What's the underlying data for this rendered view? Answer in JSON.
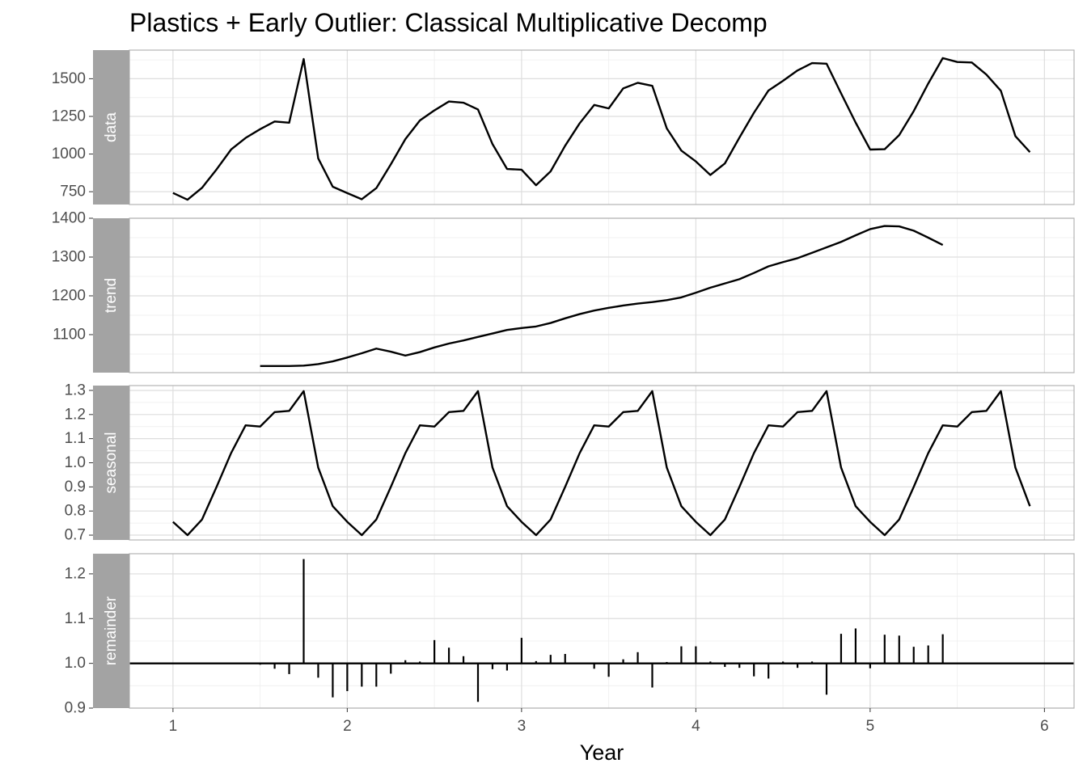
{
  "chart_data": {
    "type": "line",
    "title": "Plastics + Early Outlier: Classical Multiplicative Decomp",
    "xlabel": "Year",
    "xlim": [
      0.75,
      6.17
    ],
    "xticks": [
      1,
      2,
      3,
      4,
      5,
      6
    ],
    "panels": [
      {
        "name": "data",
        "style": "line",
        "ylim": [
          665,
          1690
        ],
        "yticks": [
          750,
          1000,
          1250,
          1500
        ],
        "x": [
          1.0,
          1.0833,
          1.1667,
          1.25,
          1.3333,
          1.4167,
          1.5,
          1.5833,
          1.6667,
          1.75,
          1.8333,
          1.9167,
          2.0,
          2.0833,
          2.1667,
          2.25,
          2.3333,
          2.4167,
          2.5,
          2.5833,
          2.6667,
          2.75,
          2.8333,
          2.9167,
          3.0,
          3.0833,
          3.1667,
          3.25,
          3.3333,
          3.4167,
          3.5,
          3.5833,
          3.6667,
          3.75,
          3.8333,
          3.9167,
          4.0,
          4.0833,
          4.1667,
          4.25,
          4.3333,
          4.4167,
          4.5,
          4.5833,
          4.6667,
          4.75,
          4.8333,
          4.9167,
          5.0,
          5.0833,
          5.1667,
          5.25,
          5.3333,
          5.4167,
          5.5,
          5.5833,
          5.6667,
          5.75,
          5.8333,
          5.9167
        ],
        "values": [
          742,
          697,
          776,
          898,
          1030,
          1107,
          1165,
          1216,
          1208,
          1631,
          971,
          783,
          741,
          700,
          774,
          932,
          1099,
          1223,
          1290,
          1349,
          1341,
          1296,
          1066,
          901,
          896,
          793,
          885,
          1055,
          1204,
          1326,
          1303,
          1436,
          1473,
          1453,
          1170,
          1023,
          951,
          861,
          938,
          1109,
          1274,
          1422,
          1486,
          1555,
          1604,
          1600,
          1403,
          1209,
          1030,
          1032,
          1126,
          1285,
          1468,
          1637,
          1611,
          1608,
          1528,
          1420,
          1119,
          1013
        ]
      },
      {
        "name": "trend",
        "style": "line",
        "ylim": [
          1002,
          1400
        ],
        "yticks": [
          1100,
          1200,
          1300,
          1400
        ],
        "x": [
          1.5,
          1.5833,
          1.6667,
          1.75,
          1.8333,
          1.9167,
          2.0,
          2.0833,
          2.1667,
          2.25,
          2.3333,
          2.4167,
          2.5,
          2.5833,
          2.6667,
          2.75,
          2.8333,
          2.9167,
          3.0,
          3.0833,
          3.1667,
          3.25,
          3.3333,
          3.4167,
          3.5,
          3.5833,
          3.6667,
          3.75,
          3.8333,
          3.9167,
          4.0,
          4.0833,
          4.1667,
          4.25,
          4.3333,
          4.4167,
          4.5,
          4.5833,
          4.6667,
          4.75,
          4.8333,
          4.9167,
          5.0,
          5.0833,
          5.1667,
          5.25,
          5.3333,
          5.4167
        ],
        "values": [
          1019,
          1019,
          1019,
          1020,
          1024,
          1031,
          1041,
          1052,
          1064,
          1056,
          1046,
          1055,
          1067,
          1077,
          1085,
          1094,
          1103,
          1112,
          1117,
          1121,
          1130,
          1142,
          1153,
          1162,
          1169,
          1175,
          1180,
          1184,
          1189,
          1196,
          1208,
          1221,
          1232,
          1243,
          1259,
          1276,
          1287,
          1297,
          1311,
          1325,
          1339,
          1356,
          1372,
          1380,
          1379,
          1368,
          1350,
          1331
        ]
      },
      {
        "name": "seasonal",
        "style": "line",
        "ylim": [
          0.68,
          1.32
        ],
        "yticks": [
          0.7,
          0.8,
          0.9,
          1.0,
          1.1,
          1.2,
          1.3
        ],
        "ytick_labels": [
          "0.7",
          "0.8",
          "0.9",
          "1.0",
          "1.1",
          "1.2",
          "1.3"
        ],
        "x": [
          1.0,
          1.0833,
          1.1667,
          1.25,
          1.3333,
          1.4167,
          1.5,
          1.5833,
          1.6667,
          1.75,
          1.8333,
          1.9167,
          2.0,
          2.0833,
          2.1667,
          2.25,
          2.3333,
          2.4167,
          2.5,
          2.5833,
          2.6667,
          2.75,
          2.8333,
          2.9167,
          3.0,
          3.0833,
          3.1667,
          3.25,
          3.3333,
          3.4167,
          3.5,
          3.5833,
          3.6667,
          3.75,
          3.8333,
          3.9167,
          4.0,
          4.0833,
          4.1667,
          4.25,
          4.3333,
          4.4167,
          4.5,
          4.5833,
          4.6667,
          4.75,
          4.8333,
          4.9167,
          5.0,
          5.0833,
          5.1667,
          5.25,
          5.3333,
          5.4167,
          5.5,
          5.5833,
          5.6667,
          5.75,
          5.8333,
          5.9167
        ],
        "values": [
          0.755,
          0.7,
          0.765,
          0.9,
          1.04,
          1.155,
          1.15,
          1.21,
          1.215,
          1.297,
          0.98,
          0.82,
          0.755,
          0.7,
          0.765,
          0.9,
          1.04,
          1.155,
          1.15,
          1.21,
          1.215,
          1.297,
          0.98,
          0.82,
          0.755,
          0.7,
          0.765,
          0.9,
          1.04,
          1.155,
          1.15,
          1.21,
          1.215,
          1.297,
          0.98,
          0.82,
          0.755,
          0.7,
          0.765,
          0.9,
          1.04,
          1.155,
          1.15,
          1.21,
          1.215,
          1.297,
          0.98,
          0.82,
          0.755,
          0.7,
          0.765,
          0.9,
          1.04,
          1.155,
          1.15,
          1.21,
          1.215,
          1.297,
          0.98,
          0.82
        ]
      },
      {
        "name": "remainder",
        "style": "spikes",
        "baseline": 1.0,
        "ylim": [
          0.9,
          1.245
        ],
        "yticks": [
          0.9,
          1.0,
          1.1,
          1.2
        ],
        "ytick_labels": [
          "0.9",
          "1.0",
          "1.1",
          "1.2"
        ],
        "x": [
          1.5,
          1.5833,
          1.6667,
          1.75,
          1.8333,
          1.9167,
          2.0,
          2.0833,
          2.1667,
          2.25,
          2.3333,
          2.4167,
          2.5,
          2.5833,
          2.6667,
          2.75,
          2.8333,
          2.9167,
          3.0,
          3.0833,
          3.1667,
          3.25,
          3.3333,
          3.4167,
          3.5,
          3.5833,
          3.6667,
          3.75,
          3.8333,
          3.9167,
          4.0,
          4.0833,
          4.1667,
          4.25,
          4.3333,
          4.4167,
          4.5,
          4.5833,
          4.6667,
          4.75,
          4.8333,
          4.9167,
          5.0,
          5.0833,
          5.1667,
          5.25,
          5.3333,
          5.4167
        ],
        "values": [
          0.997,
          0.988,
          0.976,
          1.233,
          0.968,
          0.924,
          0.938,
          0.948,
          0.948,
          0.977,
          1.007,
          1.004,
          1.052,
          1.035,
          1.016,
          0.914,
          0.987,
          0.984,
          1.057,
          1.005,
          1.019,
          1.021,
          1.001,
          0.988,
          0.97,
          1.009,
          1.025,
          0.946,
          1.003,
          1.038,
          1.038,
          1.004,
          0.992,
          0.99,
          0.971,
          0.966,
          1.004,
          0.99,
          1.004,
          0.93,
          1.066,
          1.078,
          0.989,
          1.064,
          1.062,
          1.037,
          1.04,
          1.065
        ]
      }
    ]
  }
}
